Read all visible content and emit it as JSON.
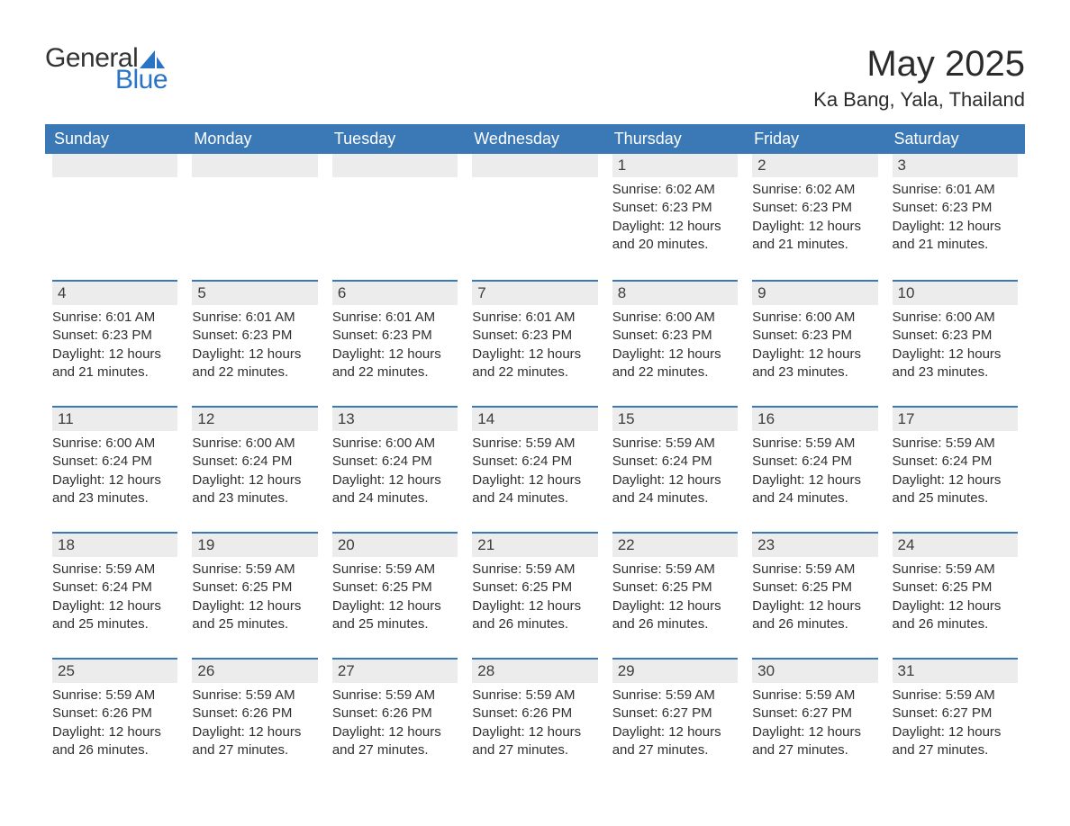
{
  "brand": {
    "word1": "General",
    "word2": "Blue",
    "logo_text_color": "#333333",
    "logo_accent_color": "#2a74c6"
  },
  "header": {
    "title": "May 2025",
    "location": "Ka Bang, Yala, Thailand",
    "title_fontsize_pt": 30,
    "location_fontsize_pt": 16
  },
  "styling": {
    "weekday_header_bg": "#3a78b6",
    "weekday_header_text": "#ffffff",
    "daynum_bar_bg": "#ececec",
    "week_rule_color": "#3a78b6",
    "body_text_color": "#2e2e2e",
    "page_bg": "#ffffff",
    "cell_font_size_pt": 11,
    "header_font_size_pt": 13,
    "columns": 7,
    "rows": 5
  },
  "weekdays": [
    "Sunday",
    "Monday",
    "Tuesday",
    "Wednesday",
    "Thursday",
    "Friday",
    "Saturday"
  ],
  "weeks": [
    [
      null,
      null,
      null,
      null,
      {
        "day": "1",
        "sunrise": "Sunrise: 6:02 AM",
        "sunset": "Sunset: 6:23 PM",
        "daylight": "Daylight: 12 hours and 20 minutes."
      },
      {
        "day": "2",
        "sunrise": "Sunrise: 6:02 AM",
        "sunset": "Sunset: 6:23 PM",
        "daylight": "Daylight: 12 hours and 21 minutes."
      },
      {
        "day": "3",
        "sunrise": "Sunrise: 6:01 AM",
        "sunset": "Sunset: 6:23 PM",
        "daylight": "Daylight: 12 hours and 21 minutes."
      }
    ],
    [
      {
        "day": "4",
        "sunrise": "Sunrise: 6:01 AM",
        "sunset": "Sunset: 6:23 PM",
        "daylight": "Daylight: 12 hours and 21 minutes."
      },
      {
        "day": "5",
        "sunrise": "Sunrise: 6:01 AM",
        "sunset": "Sunset: 6:23 PM",
        "daylight": "Daylight: 12 hours and 22 minutes."
      },
      {
        "day": "6",
        "sunrise": "Sunrise: 6:01 AM",
        "sunset": "Sunset: 6:23 PM",
        "daylight": "Daylight: 12 hours and 22 minutes."
      },
      {
        "day": "7",
        "sunrise": "Sunrise: 6:01 AM",
        "sunset": "Sunset: 6:23 PM",
        "daylight": "Daylight: 12 hours and 22 minutes."
      },
      {
        "day": "8",
        "sunrise": "Sunrise: 6:00 AM",
        "sunset": "Sunset: 6:23 PM",
        "daylight": "Daylight: 12 hours and 22 minutes."
      },
      {
        "day": "9",
        "sunrise": "Sunrise: 6:00 AM",
        "sunset": "Sunset: 6:23 PM",
        "daylight": "Daylight: 12 hours and 23 minutes."
      },
      {
        "day": "10",
        "sunrise": "Sunrise: 6:00 AM",
        "sunset": "Sunset: 6:23 PM",
        "daylight": "Daylight: 12 hours and 23 minutes."
      }
    ],
    [
      {
        "day": "11",
        "sunrise": "Sunrise: 6:00 AM",
        "sunset": "Sunset: 6:24 PM",
        "daylight": "Daylight: 12 hours and 23 minutes."
      },
      {
        "day": "12",
        "sunrise": "Sunrise: 6:00 AM",
        "sunset": "Sunset: 6:24 PM",
        "daylight": "Daylight: 12 hours and 23 minutes."
      },
      {
        "day": "13",
        "sunrise": "Sunrise: 6:00 AM",
        "sunset": "Sunset: 6:24 PM",
        "daylight": "Daylight: 12 hours and 24 minutes."
      },
      {
        "day": "14",
        "sunrise": "Sunrise: 5:59 AM",
        "sunset": "Sunset: 6:24 PM",
        "daylight": "Daylight: 12 hours and 24 minutes."
      },
      {
        "day": "15",
        "sunrise": "Sunrise: 5:59 AM",
        "sunset": "Sunset: 6:24 PM",
        "daylight": "Daylight: 12 hours and 24 minutes."
      },
      {
        "day": "16",
        "sunrise": "Sunrise: 5:59 AM",
        "sunset": "Sunset: 6:24 PM",
        "daylight": "Daylight: 12 hours and 24 minutes."
      },
      {
        "day": "17",
        "sunrise": "Sunrise: 5:59 AM",
        "sunset": "Sunset: 6:24 PM",
        "daylight": "Daylight: 12 hours and 25 minutes."
      }
    ],
    [
      {
        "day": "18",
        "sunrise": "Sunrise: 5:59 AM",
        "sunset": "Sunset: 6:24 PM",
        "daylight": "Daylight: 12 hours and 25 minutes."
      },
      {
        "day": "19",
        "sunrise": "Sunrise: 5:59 AM",
        "sunset": "Sunset: 6:25 PM",
        "daylight": "Daylight: 12 hours and 25 minutes."
      },
      {
        "day": "20",
        "sunrise": "Sunrise: 5:59 AM",
        "sunset": "Sunset: 6:25 PM",
        "daylight": "Daylight: 12 hours and 25 minutes."
      },
      {
        "day": "21",
        "sunrise": "Sunrise: 5:59 AM",
        "sunset": "Sunset: 6:25 PM",
        "daylight": "Daylight: 12 hours and 26 minutes."
      },
      {
        "day": "22",
        "sunrise": "Sunrise: 5:59 AM",
        "sunset": "Sunset: 6:25 PM",
        "daylight": "Daylight: 12 hours and 26 minutes."
      },
      {
        "day": "23",
        "sunrise": "Sunrise: 5:59 AM",
        "sunset": "Sunset: 6:25 PM",
        "daylight": "Daylight: 12 hours and 26 minutes."
      },
      {
        "day": "24",
        "sunrise": "Sunrise: 5:59 AM",
        "sunset": "Sunset: 6:25 PM",
        "daylight": "Daylight: 12 hours and 26 minutes."
      }
    ],
    [
      {
        "day": "25",
        "sunrise": "Sunrise: 5:59 AM",
        "sunset": "Sunset: 6:26 PM",
        "daylight": "Daylight: 12 hours and 26 minutes."
      },
      {
        "day": "26",
        "sunrise": "Sunrise: 5:59 AM",
        "sunset": "Sunset: 6:26 PM",
        "daylight": "Daylight: 12 hours and 27 minutes."
      },
      {
        "day": "27",
        "sunrise": "Sunrise: 5:59 AM",
        "sunset": "Sunset: 6:26 PM",
        "daylight": "Daylight: 12 hours and 27 minutes."
      },
      {
        "day": "28",
        "sunrise": "Sunrise: 5:59 AM",
        "sunset": "Sunset: 6:26 PM",
        "daylight": "Daylight: 12 hours and 27 minutes."
      },
      {
        "day": "29",
        "sunrise": "Sunrise: 5:59 AM",
        "sunset": "Sunset: 6:27 PM",
        "daylight": "Daylight: 12 hours and 27 minutes."
      },
      {
        "day": "30",
        "sunrise": "Sunrise: 5:59 AM",
        "sunset": "Sunset: 6:27 PM",
        "daylight": "Daylight: 12 hours and 27 minutes."
      },
      {
        "day": "31",
        "sunrise": "Sunrise: 5:59 AM",
        "sunset": "Sunset: 6:27 PM",
        "daylight": "Daylight: 12 hours and 27 minutes."
      }
    ]
  ]
}
